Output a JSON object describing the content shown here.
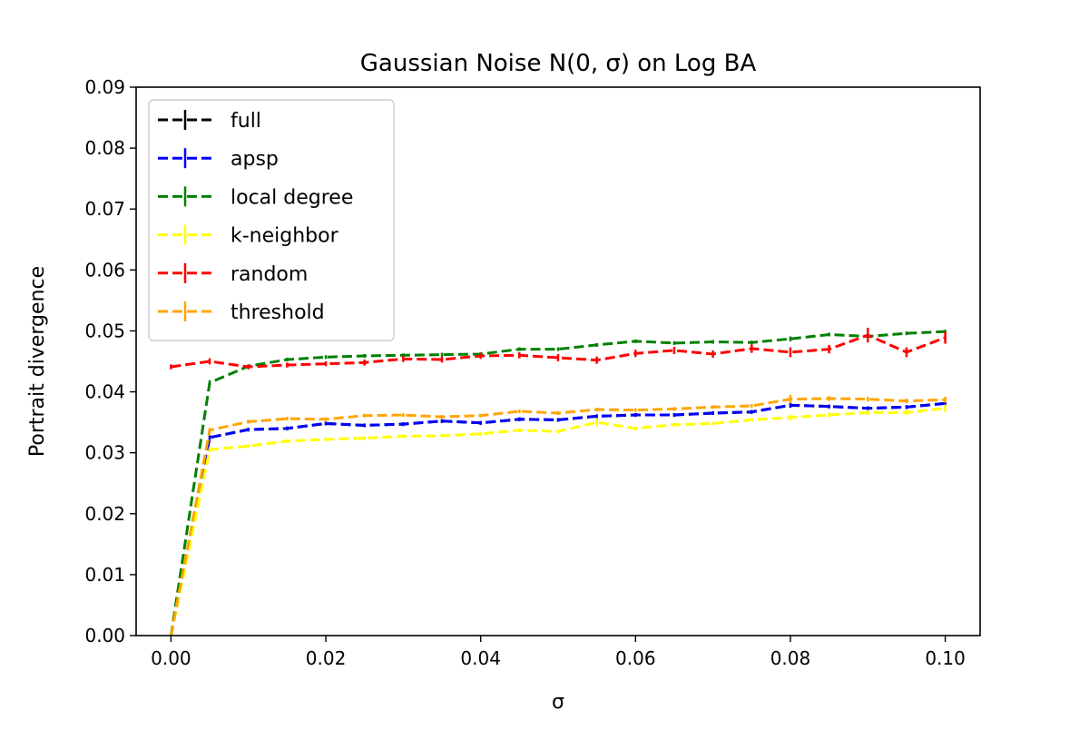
{
  "chart_data": {
    "type": "line",
    "title": "Gaussian Noise N(0, σ) on Log BA",
    "xlabel": "σ",
    "ylabel": "Portrait divergence",
    "xlim": [
      -0.0045,
      0.1045
    ],
    "ylim": [
      0,
      0.09
    ],
    "xticks": [
      0.0,
      0.02,
      0.04,
      0.06,
      0.08,
      0.1
    ],
    "xtick_labels": [
      "0.00",
      "0.02",
      "0.04",
      "0.06",
      "0.08",
      "0.10"
    ],
    "yticks": [
      0.0,
      0.01,
      0.02,
      0.03,
      0.04,
      0.05,
      0.06,
      0.07,
      0.08,
      0.09
    ],
    "ytick_labels": [
      "0.00",
      "0.01",
      "0.02",
      "0.03",
      "0.04",
      "0.05",
      "0.06",
      "0.07",
      "0.08",
      "0.09"
    ],
    "grid": false,
    "legend_position": "top-left",
    "line_style": "dashed",
    "error_bars": true,
    "x": [
      0.0,
      0.005,
      0.01,
      0.015,
      0.02,
      0.025,
      0.03,
      0.035,
      0.04,
      0.045,
      0.05,
      0.055,
      0.06,
      0.065,
      0.07,
      0.075,
      0.08,
      0.085,
      0.09,
      0.095,
      0.1
    ],
    "series": [
      {
        "name": "full",
        "color": "#000000",
        "values": [
          0.0,
          0.0325,
          0.0338,
          0.034,
          0.0348,
          0.0345,
          0.0347,
          0.0352,
          0.0349,
          0.0355,
          0.0354,
          0.036,
          0.0362,
          0.0362,
          0.0365,
          0.0367,
          0.0378,
          0.0376,
          0.0373,
          0.0375,
          0.0381
        ],
        "errors": [
          0.0,
          0.0004,
          0.0003,
          0.0003,
          0.0003,
          0.0003,
          0.0003,
          0.0003,
          0.0003,
          0.0003,
          0.0003,
          0.0003,
          0.0003,
          0.0003,
          0.0003,
          0.0003,
          0.0004,
          0.0003,
          0.0003,
          0.0003,
          0.0003
        ]
      },
      {
        "name": "apsp",
        "color": "#0000ff",
        "values": [
          0.0,
          0.0325,
          0.0338,
          0.034,
          0.0348,
          0.0345,
          0.0347,
          0.0352,
          0.0349,
          0.0355,
          0.0354,
          0.036,
          0.0362,
          0.0362,
          0.0365,
          0.0367,
          0.0378,
          0.0376,
          0.0373,
          0.0375,
          0.0381
        ],
        "errors": [
          0.0,
          0.0004,
          0.0003,
          0.0003,
          0.0003,
          0.0003,
          0.0003,
          0.0003,
          0.0003,
          0.0003,
          0.0003,
          0.0003,
          0.0003,
          0.0003,
          0.0003,
          0.0003,
          0.0004,
          0.0003,
          0.0003,
          0.0003,
          0.0003
        ]
      },
      {
        "name": "local degree",
        "color": "#008000",
        "values": [
          0.0,
          0.0415,
          0.0442,
          0.0453,
          0.0457,
          0.0459,
          0.046,
          0.0461,
          0.0462,
          0.047,
          0.047,
          0.0477,
          0.0483,
          0.048,
          0.0482,
          0.0481,
          0.0487,
          0.0494,
          0.0491,
          0.0496,
          0.0499
        ],
        "errors": [
          0.0,
          0.0004,
          0.0003,
          0.0003,
          0.0003,
          0.0003,
          0.0003,
          0.0003,
          0.0003,
          0.0003,
          0.0003,
          0.0003,
          0.0003,
          0.0003,
          0.0003,
          0.0003,
          0.0004,
          0.0003,
          0.0003,
          0.0003,
          0.0003
        ]
      },
      {
        "name": "k-neighbor",
        "color": "#ffff00",
        "values": [
          0.0,
          0.0305,
          0.0311,
          0.0319,
          0.0322,
          0.0324,
          0.0327,
          0.0328,
          0.0331,
          0.0337,
          0.0335,
          0.035,
          0.034,
          0.0346,
          0.0348,
          0.0354,
          0.0358,
          0.0362,
          0.0366,
          0.0366,
          0.0373
        ],
        "errors": [
          0.0,
          0.0004,
          0.0003,
          0.0003,
          0.0003,
          0.0003,
          0.0003,
          0.0003,
          0.0003,
          0.0003,
          0.0003,
          0.0007,
          0.0003,
          0.0003,
          0.0003,
          0.0003,
          0.0005,
          0.0004,
          0.0004,
          0.0004,
          0.0006
        ]
      },
      {
        "name": "random",
        "color": "#ff0000",
        "values": [
          0.0441,
          0.045,
          0.0441,
          0.0444,
          0.0446,
          0.0448,
          0.0454,
          0.0453,
          0.0459,
          0.046,
          0.0456,
          0.0452,
          0.0463,
          0.0468,
          0.0462,
          0.0471,
          0.0465,
          0.047,
          0.0493,
          0.0465,
          0.0489
        ],
        "errors": [
          0.0004,
          0.0005,
          0.0004,
          0.0004,
          0.0004,
          0.0005,
          0.0005,
          0.0005,
          0.0005,
          0.0005,
          0.0006,
          0.0006,
          0.0006,
          0.0006,
          0.0006,
          0.0007,
          0.0008,
          0.0007,
          0.0012,
          0.0008,
          0.001
        ]
      },
      {
        "name": "threshold",
        "color": "#ffa500",
        "values": [
          0.0,
          0.0337,
          0.0351,
          0.0356,
          0.0355,
          0.0361,
          0.0362,
          0.0359,
          0.0361,
          0.0368,
          0.0365,
          0.0371,
          0.037,
          0.0372,
          0.0375,
          0.0377,
          0.0388,
          0.0389,
          0.0388,
          0.0385,
          0.0387
        ],
        "errors": [
          0.0,
          0.0004,
          0.0003,
          0.0003,
          0.0003,
          0.0003,
          0.0003,
          0.0003,
          0.0003,
          0.0003,
          0.0003,
          0.0003,
          0.0003,
          0.0003,
          0.0003,
          0.0003,
          0.0007,
          0.0004,
          0.0004,
          0.0004,
          0.0005
        ]
      }
    ]
  }
}
